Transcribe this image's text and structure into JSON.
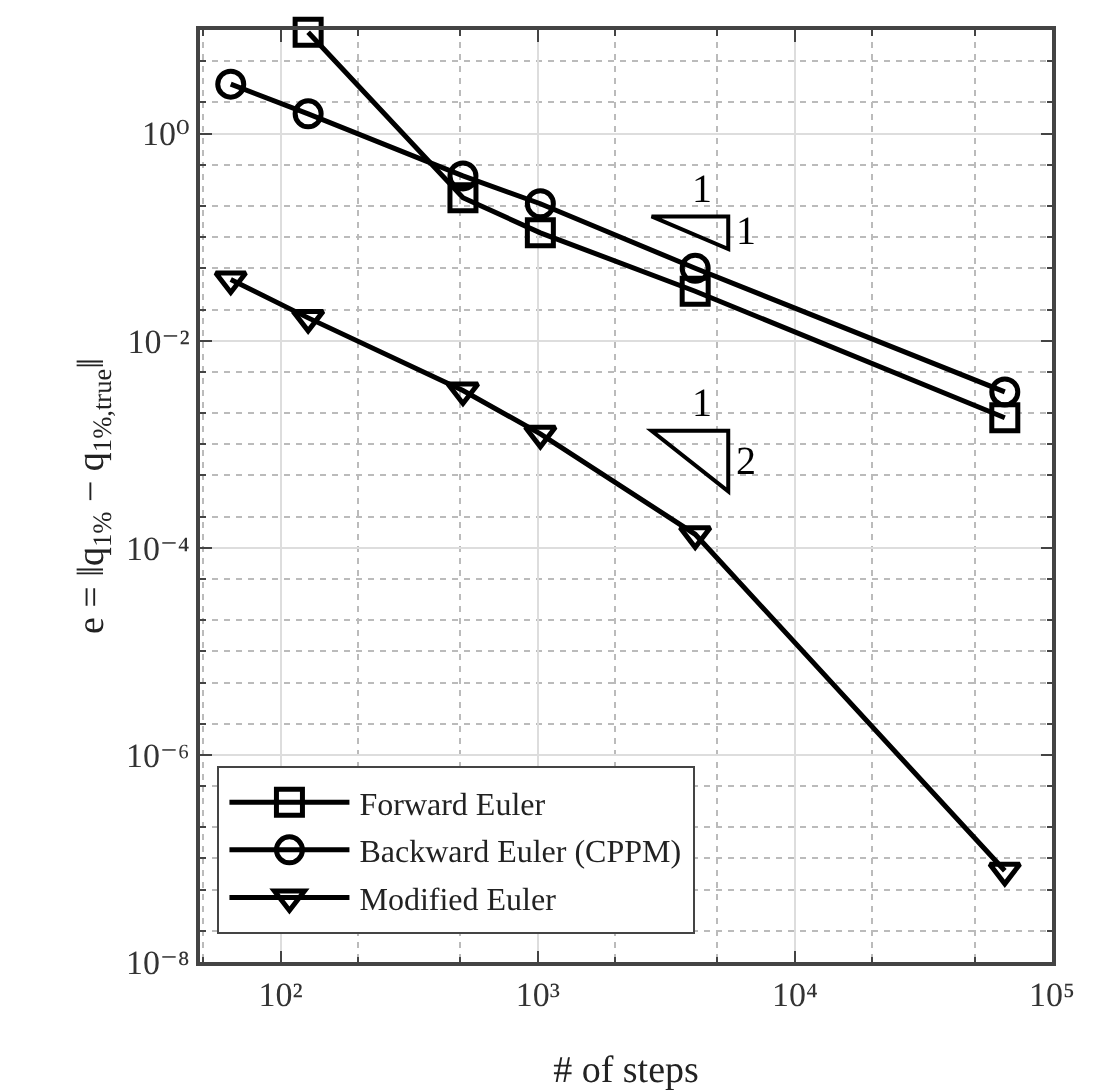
{
  "chart_data": {
    "type": "line",
    "xlabel": "# of steps",
    "ylabel": "e = ‖q$_{1%}$ − q$_{1%,true}$‖",
    "log": "xy",
    "grid": true,
    "legend": "bottom left",
    "line_style": "solid",
    "xlim": [
      48.6,
      100000
    ],
    "ylim": [
      1e-08,
      10
    ],
    "xticks": [
      {
        "value": 100,
        "label": "10²"
      },
      {
        "value": 1000,
        "label": "10³"
      },
      {
        "value": 10000,
        "label": "10⁴"
      },
      {
        "value": 100000,
        "label": "10⁵"
      }
    ],
    "yticks": [
      {
        "value": 1e-08,
        "label": "10⁻⁸"
      },
      {
        "value": 1e-06,
        "label": "10⁻⁶"
      },
      {
        "value": 0.0001,
        "label": "10⁻⁴"
      },
      {
        "value": 0.01,
        "label": "10⁻²"
      },
      {
        "value": 1,
        "label": "10⁰"
      }
    ],
    "series": [
      {
        "name": "Forward Euler",
        "color": "#000000",
        "marker": "square",
        "x": [
          128,
          512,
          1024,
          4096,
          65536
        ],
        "values": [
          9.5,
          0.24,
          0.11,
          0.03,
          0.0018
        ]
      },
      {
        "name": "Backward Euler (CPPM)",
        "color": "#000000",
        "marker": "circle",
        "x": [
          64,
          128,
          512,
          1024,
          4096,
          65536
        ],
        "values": [
          3.0,
          1.55,
          0.39,
          0.21,
          0.05,
          0.0032
        ]
      },
      {
        "name": "Modified Euler",
        "color": "#000000",
        "marker": "triangle",
        "x": [
          64,
          128,
          512,
          1024,
          4096,
          65536
        ],
        "values": [
          0.039,
          0.0166,
          0.0033,
          0.00126,
          0.000135,
          7.6e-08
        ]
      }
    ],
    "annotations": [
      "1",
      "1",
      "1",
      "2"
    ]
  }
}
